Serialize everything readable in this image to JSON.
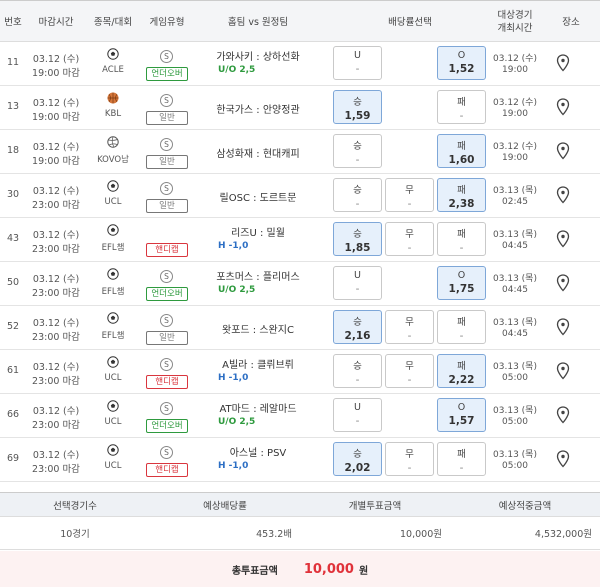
{
  "header": {
    "columns": [
      "번호",
      "마감시간",
      "종목/대회",
      "게임유형",
      "홈팀 vs 원정팀",
      "배당률선택",
      [
        "대상경기",
        "개최시간"
      ],
      "장소"
    ]
  },
  "rows": [
    {
      "no": 11,
      "close_date": "03.12 (수)",
      "close_time": "19:00 마감",
      "league": "ACLE",
      "sport_icon": "soccer",
      "s_badge": "S",
      "game_type": "언더오버",
      "type_color": "#2e9a3e",
      "match": "가와사키 : 상하선화",
      "sub": "U/O 2,5",
      "sub_color": "#2e9a3e",
      "odds": [
        {
          "label": "U",
          "value": "-",
          "selected": false
        },
        {
          "label": "O",
          "value": "1,52",
          "selected": true
        }
      ],
      "game_date": "03.12 (수)",
      "game_time": "19:00"
    },
    {
      "no": 13,
      "close_date": "03.12 (수)",
      "close_time": "19:00 마감",
      "league": "KBL",
      "sport_icon": "basketball",
      "s_badge": "S",
      "game_type": "일반",
      "type_color": "#777777",
      "match": "한국가스 : 안양정관",
      "sub": null,
      "sub_color": null,
      "odds": [
        {
          "label": "승",
          "value": "1,59",
          "selected": true
        },
        {
          "label": "패",
          "value": "-",
          "selected": false
        }
      ],
      "game_date": "03.12 (수)",
      "game_time": "19:00"
    },
    {
      "no": 18,
      "close_date": "03.12 (수)",
      "close_time": "19:00 마감",
      "league": "KOVO남",
      "sport_icon": "volleyball",
      "s_badge": "S",
      "game_type": "일반",
      "type_color": "#777777",
      "match": "삼성화재 : 현대캐피",
      "sub": null,
      "sub_color": null,
      "odds": [
        {
          "label": "승",
          "value": "-",
          "selected": false
        },
        {
          "label": "패",
          "value": "1,60",
          "selected": true
        }
      ],
      "game_date": "03.12 (수)",
      "game_time": "19:00"
    },
    {
      "no": 30,
      "close_date": "03.12 (수)",
      "close_time": "23:00 마감",
      "league": "UCL",
      "sport_icon": "soccer",
      "s_badge": "S",
      "game_type": "일반",
      "type_color": "#777777",
      "match": "릴OSC : 도르트문",
      "sub": null,
      "sub_color": null,
      "odds": [
        {
          "label": "승",
          "value": "-",
          "selected": false
        },
        {
          "label": "무",
          "value": "-",
          "selected": false
        },
        {
          "label": "패",
          "value": "2,38",
          "selected": true
        }
      ],
      "game_date": "03.13 (목)",
      "game_time": "02:45"
    },
    {
      "no": 43,
      "close_date": "03.12 (수)",
      "close_time": "23:00 마감",
      "league": "EFL챔",
      "sport_icon": "soccer",
      "s_badge": null,
      "game_type": "핸디캡",
      "type_color": "#d9363e",
      "match": "리즈U : 밀월",
      "sub": "H -1,0",
      "sub_color": "#2d6fc4",
      "odds": [
        {
          "label": "승",
          "value": "1,85",
          "selected": true
        },
        {
          "label": "무",
          "value": "-",
          "selected": false
        },
        {
          "label": "패",
          "value": "-",
          "selected": false
        }
      ],
      "game_date": "03.13 (목)",
      "game_time": "04:45"
    },
    {
      "no": 50,
      "close_date": "03.12 (수)",
      "close_time": "23:00 마감",
      "league": "EFL챔",
      "sport_icon": "soccer",
      "s_badge": "S",
      "game_type": "언더오버",
      "type_color": "#2e9a3e",
      "match": "포츠머스 : 플리머스",
      "sub": "U/O 2,5",
      "sub_color": "#2e9a3e",
      "odds": [
        {
          "label": "U",
          "value": "-",
          "selected": false
        },
        {
          "label": "O",
          "value": "1,75",
          "selected": true
        }
      ],
      "game_date": "03.13 (목)",
      "game_time": "04:45"
    },
    {
      "no": 52,
      "close_date": "03.12 (수)",
      "close_time": "23:00 마감",
      "league": "EFL챔",
      "sport_icon": "soccer",
      "s_badge": "S",
      "game_type": "일반",
      "type_color": "#777777",
      "match": "왓포드 : 스완지C",
      "sub": null,
      "sub_color": null,
      "odds": [
        {
          "label": "승",
          "value": "2,16",
          "selected": true
        },
        {
          "label": "무",
          "value": "-",
          "selected": false
        },
        {
          "label": "패",
          "value": "-",
          "selected": false
        }
      ],
      "game_date": "03.13 (목)",
      "game_time": "04:45"
    },
    {
      "no": 61,
      "close_date": "03.12 (수)",
      "close_time": "23:00 마감",
      "league": "UCL",
      "sport_icon": "soccer",
      "s_badge": "S",
      "game_type": "핸디캡",
      "type_color": "#d9363e",
      "match": "A빌라 : 클뤼브뤼",
      "sub": "H -1,0",
      "sub_color": "#2d6fc4",
      "odds": [
        {
          "label": "승",
          "value": "-",
          "selected": false
        },
        {
          "label": "무",
          "value": "-",
          "selected": false
        },
        {
          "label": "패",
          "value": "2,22",
          "selected": true
        }
      ],
      "game_date": "03.13 (목)",
      "game_time": "05:00"
    },
    {
      "no": 66,
      "close_date": "03.12 (수)",
      "close_time": "23:00 마감",
      "league": "UCL",
      "sport_icon": "soccer",
      "s_badge": "S",
      "game_type": "언더오버",
      "type_color": "#2e9a3e",
      "match": "AT마드 : 레알마드",
      "sub": "U/O 2,5",
      "sub_color": "#2e9a3e",
      "odds": [
        {
          "label": "U",
          "value": "-",
          "selected": false
        },
        {
          "label": "O",
          "value": "1,57",
          "selected": true
        }
      ],
      "game_date": "03.13 (목)",
      "game_time": "05:00"
    },
    {
      "no": 69,
      "close_date": "03.12 (수)",
      "close_time": "23:00 마감",
      "league": "UCL",
      "sport_icon": "soccer",
      "s_badge": "S",
      "game_type": "핸디캡",
      "type_color": "#d9363e",
      "match": "아스널 : PSV",
      "sub": "H -1,0",
      "sub_color": "#2d6fc4",
      "odds": [
        {
          "label": "승",
          "value": "2,02",
          "selected": true
        },
        {
          "label": "무",
          "value": "-",
          "selected": false
        },
        {
          "label": "패",
          "value": "-",
          "selected": false
        }
      ],
      "game_date": "03.13 (목)",
      "game_time": "05:00"
    }
  ],
  "summary": {
    "headers": [
      "선택경기수",
      "예상배당률",
      "개별투표금액",
      "예상적중금액"
    ],
    "values": [
      "10경기",
      "453.2배",
      "10,000원",
      "4,532,000원"
    ]
  },
  "total": {
    "label": "총투표금액",
    "amount": "10,000",
    "unit": "원"
  }
}
